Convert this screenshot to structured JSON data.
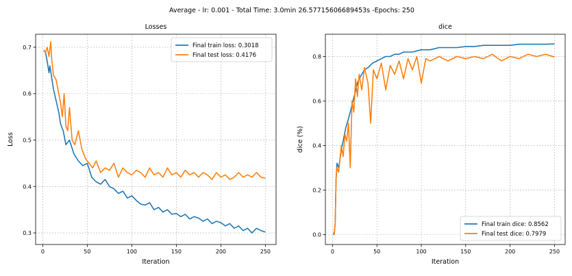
{
  "figure": {
    "suptitle": "Average - lr: 0.001 - Total Time: 3.0min 26.57715606689453s -Epochs: 250"
  },
  "colors": {
    "train": "#1f77b4",
    "test": "#ff7f0e"
  },
  "chart_data": [
    {
      "type": "line",
      "title": "Losses",
      "xlabel": "Iteration",
      "ylabel": "Loss",
      "xlim": [
        -8,
        262
      ],
      "ylim": [
        0.275,
        0.728
      ],
      "xticks": [
        0,
        50,
        100,
        150,
        200,
        250
      ],
      "yticks": [
        0.3,
        0.4,
        0.5,
        0.6,
        0.7
      ],
      "ytick_labels": [
        "0.3",
        "0.4",
        "0.5",
        "0.6",
        "0.7"
      ],
      "grid": true,
      "legend_position": "upper right",
      "series": [
        {
          "name": "Final train loss: 0.3018",
          "color": "#1f77b4",
          "x": [
            1,
            3,
            5,
            7,
            8,
            10,
            12,
            15,
            18,
            20,
            23,
            26,
            30,
            35,
            40,
            45,
            50,
            55,
            60,
            65,
            70,
            75,
            80,
            85,
            90,
            95,
            100,
            105,
            110,
            115,
            120,
            125,
            130,
            135,
            140,
            145,
            150,
            155,
            160,
            165,
            170,
            175,
            180,
            185,
            190,
            195,
            200,
            205,
            210,
            215,
            220,
            225,
            230,
            235,
            240,
            245,
            250
          ],
          "y": [
            0.694,
            0.69,
            0.67,
            0.645,
            0.66,
            0.635,
            0.61,
            0.585,
            0.56,
            0.535,
            0.52,
            0.49,
            0.5,
            0.47,
            0.455,
            0.445,
            0.45,
            0.42,
            0.41,
            0.405,
            0.415,
            0.4,
            0.395,
            0.385,
            0.39,
            0.375,
            0.38,
            0.37,
            0.362,
            0.36,
            0.365,
            0.35,
            0.355,
            0.345,
            0.35,
            0.34,
            0.342,
            0.335,
            0.34,
            0.33,
            0.335,
            0.332,
            0.325,
            0.33,
            0.32,
            0.325,
            0.322,
            0.315,
            0.32,
            0.31,
            0.315,
            0.305,
            0.31,
            0.3,
            0.31,
            0.305,
            0.3018
          ]
        },
        {
          "name": "Final test loss: 0.4176",
          "color": "#ff7f0e",
          "x": [
            1,
            3,
            5,
            7,
            9,
            10,
            12,
            15,
            18,
            20,
            22,
            24,
            26,
            28,
            30,
            33,
            36,
            40,
            44,
            48,
            52,
            56,
            60,
            65,
            70,
            75,
            80,
            85,
            90,
            95,
            100,
            105,
            110,
            115,
            120,
            125,
            130,
            135,
            140,
            145,
            150,
            155,
            160,
            165,
            170,
            175,
            180,
            185,
            190,
            195,
            200,
            205,
            210,
            215,
            220,
            225,
            230,
            235,
            240,
            245,
            250
          ],
          "y": [
            0.694,
            0.688,
            0.7,
            0.68,
            0.712,
            0.675,
            0.64,
            0.63,
            0.6,
            0.58,
            0.55,
            0.6,
            0.53,
            0.52,
            0.57,
            0.5,
            0.49,
            0.52,
            0.48,
            0.46,
            0.45,
            0.44,
            0.455,
            0.43,
            0.44,
            0.435,
            0.45,
            0.42,
            0.44,
            0.43,
            0.425,
            0.435,
            0.43,
            0.42,
            0.44,
            0.425,
            0.43,
            0.42,
            0.44,
            0.425,
            0.43,
            0.42,
            0.435,
            0.425,
            0.43,
            0.42,
            0.43,
            0.425,
            0.415,
            0.43,
            0.42,
            0.425,
            0.415,
            0.42,
            0.43,
            0.42,
            0.425,
            0.42,
            0.43,
            0.42,
            0.4176
          ]
        }
      ]
    },
    {
      "type": "line",
      "title": "dice",
      "xlabel": "Iteration",
      "ylabel": "dice (%)",
      "xlim": [
        -8,
        262
      ],
      "ylim": [
        -0.045,
        0.9
      ],
      "xticks": [
        0,
        50,
        100,
        150,
        200,
        250
      ],
      "yticks": [
        0.0,
        0.2,
        0.4,
        0.6,
        0.8
      ],
      "ytick_labels": [
        "0.0",
        "0.2",
        "0.4",
        "0.6",
        "0.8"
      ],
      "grid": true,
      "legend_position": "lower right",
      "series": [
        {
          "name": "Final train dice: 0.8562",
          "color": "#1f77b4",
          "x": [
            1,
            2,
            3,
            4,
            5,
            7,
            10,
            12,
            15,
            18,
            20,
            23,
            25,
            28,
            30,
            33,
            36,
            40,
            45,
            50,
            55,
            60,
            65,
            70,
            75,
            80,
            90,
            100,
            110,
            120,
            130,
            140,
            150,
            160,
            170,
            180,
            190,
            200,
            210,
            220,
            230,
            240,
            250
          ],
          "y": [
            0.0,
            0.01,
            0.05,
            0.25,
            0.32,
            0.3,
            0.38,
            0.42,
            0.48,
            0.52,
            0.55,
            0.6,
            0.63,
            0.68,
            0.7,
            0.72,
            0.74,
            0.75,
            0.77,
            0.78,
            0.79,
            0.8,
            0.8,
            0.81,
            0.81,
            0.82,
            0.82,
            0.83,
            0.83,
            0.84,
            0.84,
            0.84,
            0.845,
            0.845,
            0.85,
            0.85,
            0.85,
            0.85,
            0.855,
            0.855,
            0.855,
            0.855,
            0.8562
          ]
        },
        {
          "name": "Final test dice: 0.7979",
          "color": "#ff7f0e",
          "x": [
            1,
            2,
            3,
            4,
            5,
            7,
            10,
            12,
            14,
            16,
            18,
            20,
            22,
            24,
            26,
            28,
            30,
            33,
            36,
            40,
            43,
            46,
            50,
            55,
            60,
            65,
            70,
            75,
            80,
            85,
            90,
            95,
            100,
            105,
            110,
            120,
            130,
            140,
            150,
            160,
            170,
            180,
            190,
            200,
            210,
            220,
            230,
            240,
            250
          ],
          "y": [
            0.0,
            0.0,
            0.05,
            0.25,
            0.3,
            0.28,
            0.4,
            0.35,
            0.45,
            0.42,
            0.5,
            0.3,
            0.6,
            0.55,
            0.7,
            0.62,
            0.72,
            0.65,
            0.75,
            0.68,
            0.5,
            0.74,
            0.7,
            0.77,
            0.65,
            0.76,
            0.72,
            0.78,
            0.7,
            0.79,
            0.74,
            0.8,
            0.68,
            0.79,
            0.78,
            0.8,
            0.78,
            0.8,
            0.79,
            0.8,
            0.79,
            0.81,
            0.78,
            0.8,
            0.79,
            0.81,
            0.8,
            0.81,
            0.7979
          ]
        }
      ]
    }
  ]
}
